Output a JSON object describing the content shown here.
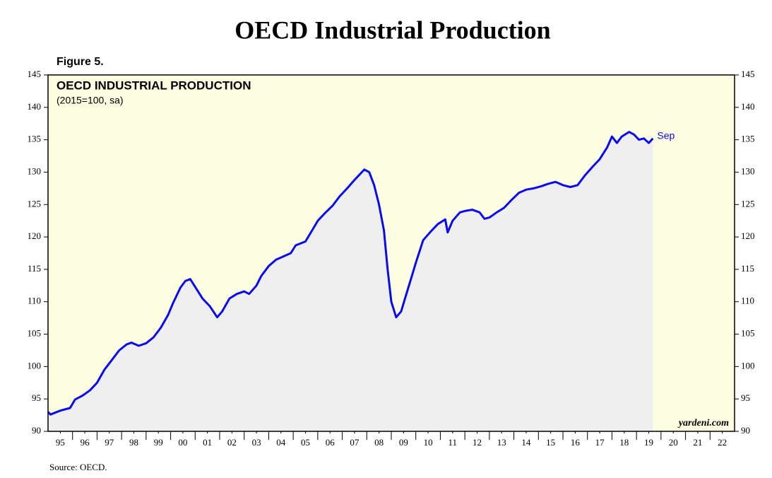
{
  "chart_data": {
    "type": "line",
    "title": "OECD Industrial Production",
    "figure_label": "Figure 5.",
    "subtitle": "OECD INDUSTRIAL PRODUCTION",
    "unit_note": "(2015=100, sa)",
    "annotation": "Sep",
    "watermark": "yardeni.com",
    "source": "Source: OECD.",
    "x": [
      1995.0,
      1995.1,
      1995.5,
      1995.9,
      1996.1,
      1996.4,
      1996.7,
      1997.0,
      1997.3,
      1997.6,
      1997.9,
      1998.2,
      1998.4,
      1998.7,
      1999.0,
      1999.3,
      1999.6,
      1999.9,
      2000.1,
      2000.4,
      2000.6,
      2000.8,
      2001.0,
      2001.3,
      2001.6,
      2001.9,
      2002.1,
      2002.4,
      2002.7,
      2003.0,
      2003.2,
      2003.5,
      2003.7,
      2004.0,
      2004.3,
      2004.6,
      2004.9,
      2005.1,
      2005.5,
      2005.8,
      2006.0,
      2006.3,
      2006.6,
      2006.9,
      2007.2,
      2007.5,
      2007.8,
      2007.9,
      2008.1,
      2008.3,
      2008.5,
      2008.7,
      2008.85,
      2009.0,
      2009.2,
      2009.4,
      2009.6,
      2009.8,
      2010.0,
      2010.3,
      2010.6,
      2010.9,
      2011.2,
      2011.3,
      2011.5,
      2011.8,
      2012.0,
      2012.3,
      2012.6,
      2012.8,
      2013.0,
      2013.3,
      2013.6,
      2013.9,
      2014.2,
      2014.5,
      2014.8,
      2015.1,
      2015.4,
      2015.7,
      2016.0,
      2016.3,
      2016.6,
      2016.9,
      2017.2,
      2017.5,
      2017.8,
      2018.0,
      2018.2,
      2018.4,
      2018.7,
      2018.9,
      2019.1,
      2019.3,
      2019.5,
      2019.67
    ],
    "series": [
      {
        "color": "#0a0af0",
        "values": [
          93.0,
          92.6,
          93.2,
          93.6,
          94.9,
          95.5,
          96.3,
          97.5,
          99.5,
          101,
          102.5,
          103.4,
          103.7,
          103.2,
          103.6,
          104.5,
          106,
          108,
          109.8,
          112.2,
          113.2,
          113.5,
          112.3,
          110.5,
          109.3,
          107.6,
          108.5,
          110.5,
          111.2,
          111.6,
          111.2,
          112.5,
          114,
          115.5,
          116.5,
          117,
          117.5,
          118.7,
          119.3,
          121.2,
          122.5,
          123.7,
          124.8,
          126.3,
          127.5,
          128.8,
          130.0,
          130.4,
          130.0,
          128,
          125,
          121,
          115,
          110,
          107.6,
          108.5,
          111,
          113.5,
          116,
          119.5,
          120.8,
          122,
          122.7,
          120.7,
          122.5,
          123.8,
          124,
          124.2,
          123.8,
          122.8,
          123,
          123.8,
          124.5,
          125.7,
          126.8,
          127.3,
          127.5,
          127.8,
          128.2,
          128.5,
          128,
          127.7,
          128,
          129.5,
          130.8,
          132,
          133.8,
          135.5,
          134.5,
          135.5,
          136.2,
          135.8,
          135.0,
          135.2,
          134.5,
          135.2
        ]
      }
    ],
    "xlim": [
      1995,
      2023
    ],
    "xticks": [
      {
        "value": 1995.5,
        "label": "95"
      },
      {
        "value": 1996.5,
        "label": "96"
      },
      {
        "value": 1997.5,
        "label": "97"
      },
      {
        "value": 1998.5,
        "label": "98"
      },
      {
        "value": 1999.5,
        "label": "99"
      },
      {
        "value": 2000.5,
        "label": "00"
      },
      {
        "value": 2001.5,
        "label": "01"
      },
      {
        "value": 2002.5,
        "label": "02"
      },
      {
        "value": 2003.5,
        "label": "03"
      },
      {
        "value": 2004.5,
        "label": "04"
      },
      {
        "value": 2005.5,
        "label": "05"
      },
      {
        "value": 2006.5,
        "label": "06"
      },
      {
        "value": 2007.5,
        "label": "07"
      },
      {
        "value": 2008.5,
        "label": "08"
      },
      {
        "value": 2009.5,
        "label": "09"
      },
      {
        "value": 2010.5,
        "label": "10"
      },
      {
        "value": 2011.5,
        "label": "11"
      },
      {
        "value": 2012.5,
        "label": "12"
      },
      {
        "value": 2013.5,
        "label": "13"
      },
      {
        "value": 2014.5,
        "label": "14"
      },
      {
        "value": 2015.5,
        "label": "15"
      },
      {
        "value": 2016.5,
        "label": "16"
      },
      {
        "value": 2017.5,
        "label": "17"
      },
      {
        "value": 2018.5,
        "label": "18"
      },
      {
        "value": 2019.5,
        "label": "19"
      },
      {
        "value": 2020.5,
        "label": "20"
      },
      {
        "value": 2021.5,
        "label": "21"
      },
      {
        "value": 2022.5,
        "label": "22"
      }
    ],
    "ylim": [
      90,
      145
    ],
    "yticks": [
      90,
      95,
      100,
      105,
      110,
      115,
      120,
      125,
      130,
      135,
      140,
      145
    ],
    "y2lim": [
      90,
      145
    ],
    "y2ticks": [
      90,
      95,
      100,
      105,
      110,
      115,
      120,
      125,
      130,
      135,
      140,
      145
    ]
  }
}
